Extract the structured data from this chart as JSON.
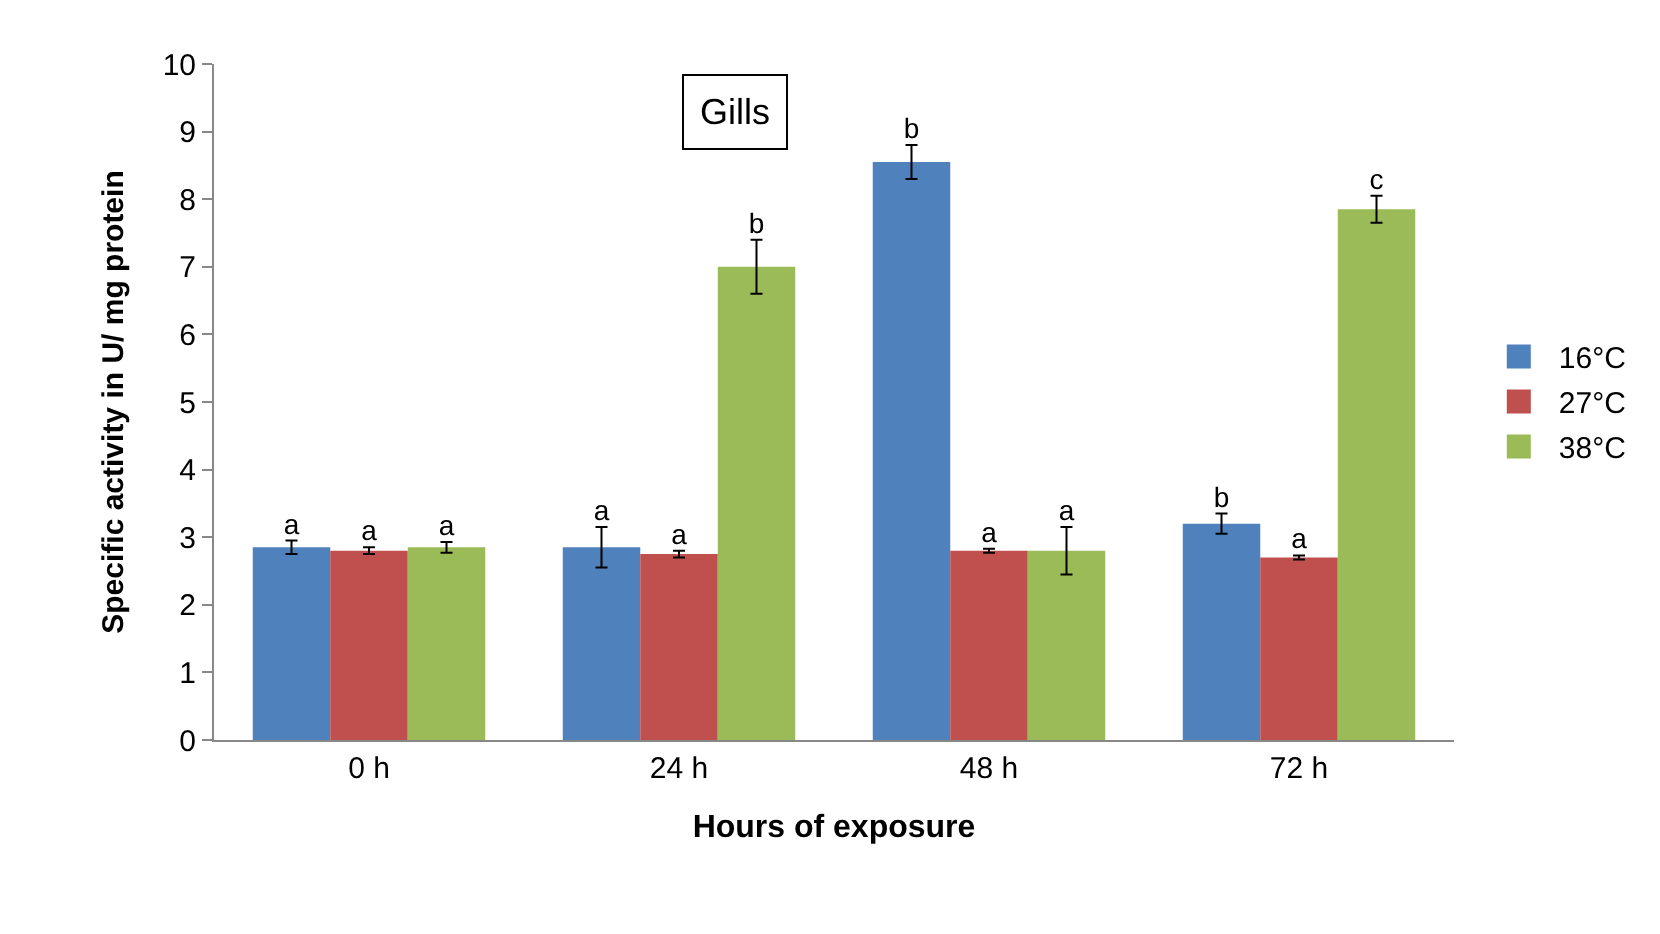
{
  "chart_data": {
    "type": "bar",
    "title": "Gills",
    "xlabel": "Hours of exposure",
    "ylabel": "Specific activity in U/ mg protein",
    "categories": [
      "0 h",
      "24 h",
      "48 h",
      "72 h"
    ],
    "series": [
      {
        "name": "16°C",
        "color": "#4f81bd",
        "values": [
          2.85,
          2.85,
          8.55,
          3.2
        ],
        "errors": [
          0.1,
          0.3,
          0.25,
          0.15
        ],
        "value_labels": [
          "a",
          "a",
          "b",
          "b"
        ]
      },
      {
        "name": "27°C",
        "color": "#c0504d",
        "values": [
          2.8,
          2.75,
          2.8,
          2.7
        ],
        "errors": [
          0.05,
          0.05,
          0.03,
          0.03
        ],
        "value_labels": [
          "a",
          "a",
          "a",
          "a"
        ]
      },
      {
        "name": "38°C",
        "color": "#9bbb59",
        "values": [
          2.85,
          7.0,
          2.8,
          7.85
        ],
        "errors": [
          0.08,
          0.4,
          0.35,
          0.2
        ],
        "value_labels": [
          "a",
          "b",
          "a",
          "c"
        ]
      }
    ],
    "ylim": [
      0,
      10
    ],
    "yticks": [
      0,
      1,
      2,
      3,
      4,
      5,
      6,
      7,
      8,
      9,
      10
    ],
    "legend": "right"
  }
}
